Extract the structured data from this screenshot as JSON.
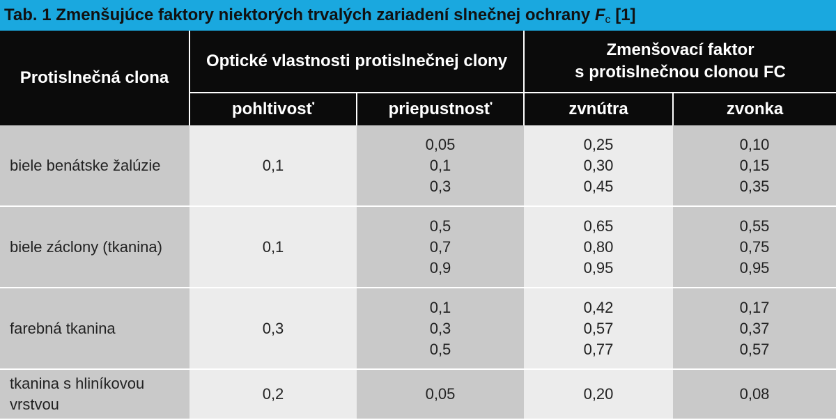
{
  "title": {
    "main": "Tab. 1 Zmenšujúce faktory niektorých trvalých zariadení slnečnej ochrany ",
    "symbol": "F",
    "symbol_sub": "c",
    "ref": " [1]"
  },
  "header": {
    "col_label": "Protislnečná clona",
    "group_optical": "Optické vlastnosti protislnečnej clony",
    "group_factor_line1": "Zmenšovací faktor",
    "group_factor_line2": "s protislnečnou clonou FC",
    "sub_absorb": "pohltivosť",
    "sub_trans": "priepustnosť",
    "sub_inside": "zvnútra",
    "sub_outside": "zvonka"
  },
  "rows": [
    {
      "label": "biele benátske žalúzie",
      "absorb": "0,1",
      "trans": [
        "0,05",
        "0,1",
        "0,3"
      ],
      "inside": [
        "0,25",
        "0,30",
        "0,45"
      ],
      "outside": [
        "0,10",
        "0,15",
        "0,35"
      ]
    },
    {
      "label": "biele záclony (tkanina)",
      "absorb": "0,1",
      "trans": [
        "0,5",
        "0,7",
        "0,9"
      ],
      "inside": [
        "0,65",
        "0,80",
        "0,95"
      ],
      "outside": [
        "0,55",
        "0,75",
        "0,95"
      ]
    },
    {
      "label": "farebná tkanina",
      "absorb": "0,3",
      "trans": [
        "0,1",
        "0,3",
        "0,5"
      ],
      "inside": [
        "0,42",
        "0,57",
        "0,77"
      ],
      "outside": [
        "0,17",
        "0,37",
        "0,57"
      ]
    },
    {
      "label": "tkanina s hliníkovou vrstvou",
      "absorb": "0,2",
      "trans": [
        "0,05"
      ],
      "inside": [
        "0,20"
      ],
      "outside": [
        "0,08"
      ]
    }
  ]
}
